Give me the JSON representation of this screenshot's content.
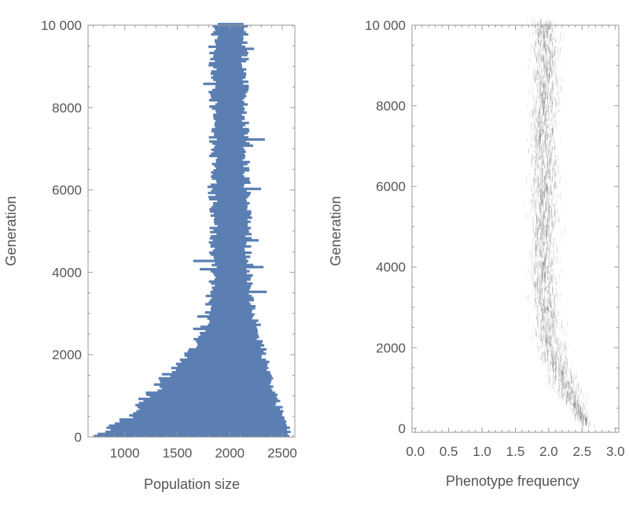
{
  "chart_data": [
    {
      "type": "bar",
      "orientation": "horizontal",
      "xlabel": "Population size",
      "ylabel": "Generation",
      "xlim": [
        650,
        2620
      ],
      "ylim": [
        0,
        10000
      ],
      "x_ticks": [
        1000,
        1500,
        2000,
        2500
      ],
      "x_tick_labels": [
        "1000",
        "1500",
        "2000",
        "2500"
      ],
      "y_ticks": [
        0,
        2000,
        4000,
        6000,
        8000,
        10000
      ],
      "y_tick_labels": [
        "0",
        "2000",
        "4000",
        "6000",
        "8000",
        "10 000"
      ],
      "bar_color": "#5b7fb2",
      "grid": false,
      "series": [
        {
          "generation_step": 50,
          "intervals": [
            [
              0,
              690,
              2560
            ],
            [
              50,
              720,
              2570
            ],
            [
              100,
              790,
              2565
            ],
            [
              150,
              830,
              2540
            ],
            [
              200,
              860,
              2550
            ],
            [
              300,
              930,
              2510
            ],
            [
              400,
              990,
              2530
            ],
            [
              500,
              1050,
              2480
            ],
            [
              600,
              1100,
              2500
            ],
            [
              700,
              1130,
              2470
            ],
            [
              800,
              1160,
              2460
            ],
            [
              900,
              1200,
              2460
            ],
            [
              1000,
              1240,
              2430
            ],
            [
              1200,
              1310,
              2410
            ],
            [
              1400,
              1380,
              2400
            ],
            [
              1600,
              1450,
              2380
            ],
            [
              1800,
              1520,
              2350
            ],
            [
              2000,
              1600,
              2330
            ],
            [
              2200,
              1650,
              2310
            ],
            [
              2400,
              1700,
              2290
            ],
            [
              2600,
              1740,
              2270
            ],
            [
              2800,
              1770,
              2250
            ],
            [
              3000,
              1790,
              2230
            ],
            [
              3500,
              1810,
              2210
            ],
            [
              4000,
              1830,
              2190
            ],
            [
              4500,
              1840,
              2180
            ],
            [
              5000,
              1850,
              2170
            ],
            [
              5500,
              1850,
              2180
            ],
            [
              6000,
              1830,
              2170
            ],
            [
              6500,
              1840,
              2160
            ],
            [
              7000,
              1830,
              2160
            ],
            [
              7500,
              1840,
              2150
            ],
            [
              8000,
              1840,
              2150
            ],
            [
              8500,
              1840,
              2150
            ],
            [
              9000,
              1840,
              2150
            ],
            [
              9500,
              1850,
              2150
            ],
            [
              10000,
              1880,
              2140
            ]
          ]
        }
      ]
    },
    {
      "type": "heatmap",
      "xlabel": "Phenotype frequency",
      "ylabel": "Generation",
      "xlim": [
        -0.05,
        3.05
      ],
      "ylim": [
        -100,
        10000
      ],
      "x_ticks": [
        0.0,
        0.5,
        1.0,
        1.5,
        2.0,
        2.5,
        3.0
      ],
      "x_tick_labels": [
        "0.0",
        "0.5",
        "1.0",
        "1.5",
        "2.0",
        "2.5",
        "3.0"
      ],
      "y_ticks": [
        0,
        2000,
        4000,
        6000,
        8000,
        10000
      ],
      "y_tick_labels": [
        "0",
        "2000",
        "4000",
        "6000",
        "8000",
        "10 000"
      ],
      "grid": false,
      "density_center": [
        [
          0,
          2.55
        ],
        [
          500,
          2.4
        ],
        [
          1000,
          2.25
        ],
        [
          1500,
          2.1
        ],
        [
          2000,
          2.02
        ],
        [
          3000,
          1.95
        ],
        [
          4000,
          1.92
        ],
        [
          5000,
          1.93
        ],
        [
          6000,
          1.95
        ],
        [
          7000,
          1.92
        ],
        [
          8000,
          1.95
        ],
        [
          9000,
          1.95
        ],
        [
          10000,
          1.93
        ]
      ],
      "density_spread": 0.22,
      "stroke_color": "#333333"
    }
  ]
}
